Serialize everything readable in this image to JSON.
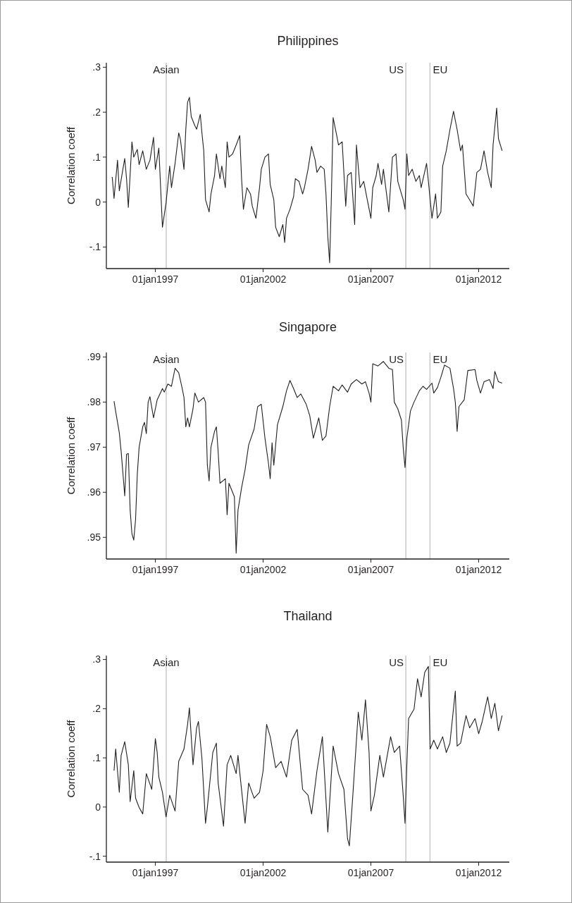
{
  "chart_data": [
    {
      "type": "line",
      "title": "Philippines",
      "ylabel": "Correlation coeff",
      "xlim": [
        "1994-09-24",
        "2013-06-03"
      ],
      "ylim": [
        -0.148,
        0.31
      ],
      "xticks": [
        {
          "value": "1997-01-01",
          "label": "01jan1997"
        },
        {
          "value": "2002-01-01",
          "label": "01jan2002"
        },
        {
          "value": "2007-01-01",
          "label": "01jan2007"
        },
        {
          "value": "2012-01-01",
          "label": "01jan2012"
        }
      ],
      "yticks": [
        {
          "value": -0.1,
          "label": "-.1"
        },
        0,
        {
          "value": 0.1,
          "label": ".1"
        },
        {
          "value": 0.2,
          "label": ".2"
        },
        {
          "value": 0.3,
          "label": ".3"
        }
      ],
      "ref_lines": [
        {
          "axis": "x",
          "value": "1997-07-04",
          "label": "Asian",
          "color": "#c8c8c8"
        },
        {
          "axis": "x",
          "value": "2008-08-15",
          "label": "US",
          "color": "#c8c8c8"
        },
        {
          "axis": "x",
          "value": "2009-09-28",
          "label": "EU",
          "color": "#c8c8c8"
        }
      ],
      "x": [
        "1995-01",
        "1995-02",
        "1995-04",
        "1995-05",
        "1995-07",
        "1995-08",
        "1995-09",
        "1995-10",
        "1995-12",
        "1996-01",
        "1996-03",
        "1996-04",
        "1996-06",
        "1996-08",
        "1996-10",
        "1996-12",
        "1997-01",
        "1997-03",
        "1997-04",
        "1997-05",
        "1997-07",
        "1997-09",
        "1997-10",
        "1997-12",
        "1998-02",
        "1998-03",
        "1998-05",
        "1998-06",
        "1998-07",
        "1998-08",
        "1998-09",
        "1998-11",
        "1998-12",
        "1999-02",
        "1999-03",
        "1999-04",
        "1999-05",
        "1999-07",
        "1999-08",
        "1999-10",
        "1999-11",
        "2000-01",
        "2000-02",
        "2000-04",
        "2000-05",
        "2000-06",
        "2000-08",
        "2000-10",
        "2000-12",
        "2001-01",
        "2001-02",
        "2001-04",
        "2001-06",
        "2001-07",
        "2001-09",
        "2001-11",
        "2001-12",
        "2002-02",
        "2002-04",
        "2002-05",
        "2002-07",
        "2002-08",
        "2002-10",
        "2002-12",
        "2003-01",
        "2003-02",
        "2003-04",
        "2003-06",
        "2003-07",
        "2003-09",
        "2003-11",
        "2003-12",
        "2004-02",
        "2004-04",
        "2004-06",
        "2004-07",
        "2004-09",
        "2004-11",
        "2004-12",
        "2005-01",
        "2005-02",
        "2005-03",
        "2005-04",
        "2005-06",
        "2005-07",
        "2005-09",
        "2005-11",
        "2005-12",
        "2006-02",
        "2006-04",
        "2006-05",
        "2006-07",
        "2006-09",
        "2006-11",
        "2007-01",
        "2007-02",
        "2007-04",
        "2007-05",
        "2007-07",
        "2007-08",
        "2007-11",
        "2008-01",
        "2008-03",
        "2008-04",
        "2008-07",
        "2008-08",
        "2008-09",
        "2008-10",
        "2008-12",
        "2009-02",
        "2009-04",
        "2009-05",
        "2009-08",
        "2009-09",
        "2009-11",
        "2010-01",
        "2010-02",
        "2010-04",
        "2010-05",
        "2010-07",
        "2010-09",
        "2010-11",
        "2011-01",
        "2011-03",
        "2011-04",
        "2011-06",
        "2011-08",
        "2011-10",
        "2011-12",
        "2012-02",
        "2012-04",
        "2012-06",
        "2012-08",
        "2012-09",
        "2012-11",
        "2012-12",
        "2013-02"
      ],
      "series": [
        {
          "color": "#231f20",
          "values": [
            0.056,
            0.008,
            0.093,
            0.025,
            0.073,
            0.097,
            0.052,
            -0.012,
            0.134,
            0.1,
            0.117,
            0.083,
            0.114,
            0.073,
            0.093,
            0.144,
            0.073,
            0.12,
            0.03,
            -0.056,
            -0.002,
            0.08,
            0.032,
            0.086,
            0.154,
            0.14,
            0.073,
            0.162,
            0.222,
            0.233,
            0.19,
            0.17,
            0.162,
            0.195,
            0.154,
            0.114,
            0.005,
            -0.022,
            0.018,
            0.059,
            0.107,
            0.052,
            0.08,
            0.032,
            0.134,
            0.1,
            0.107,
            0.127,
            0.148,
            0.052,
            -0.016,
            0.032,
            0.018,
            -0.009,
            -0.036,
            0.032,
            0.073,
            0.1,
            0.107,
            0.039,
            0.005,
            -0.056,
            -0.077,
            -0.05,
            -0.09,
            -0.036,
            -0.016,
            0.012,
            0.052,
            0.046,
            0.018,
            0.032,
            0.073,
            0.124,
            0.093,
            0.066,
            0.08,
            0.073,
            0.018,
            -0.077,
            -0.135,
            0.005,
            0.188,
            0.148,
            0.127,
            0.134,
            -0.009,
            0.059,
            0.066,
            -0.05,
            0.127,
            0.032,
            0.046,
            0.005,
            -0.036,
            0.032,
            0.059,
            0.086,
            0.039,
            0.073,
            -0.022,
            0.1,
            0.107,
            0.046,
            0.005,
            -0.016,
            0.107,
            0.059,
            0.073,
            0.046,
            0.059,
            0.032,
            0.086,
            0.046,
            -0.036,
            0.018,
            -0.036,
            -0.022,
            0.08,
            0.114,
            0.161,
            0.202,
            0.161,
            0.114,
            0.127,
            0.018,
            0.005,
            -0.009,
            0.066,
            0.073,
            0.114,
            0.066,
            0.032,
            0.127,
            0.209,
            0.141,
            0.114
          ]
        }
      ]
    },
    {
      "type": "line",
      "title": "Singapore",
      "ylabel": "Correlation coeff",
      "xlim": [
        "1994-09-24",
        "2013-06-03"
      ],
      "ylim": [
        0.9452,
        0.991
      ],
      "xticks": [
        {
          "value": "1997-01-01",
          "label": "01jan1997"
        },
        {
          "value": "2002-01-01",
          "label": "01jan2002"
        },
        {
          "value": "2007-01-01",
          "label": "01jan2007"
        },
        {
          "value": "2012-01-01",
          "label": "01jan2012"
        }
      ],
      "yticks": [
        {
          "value": 0.95,
          "label": ".95"
        },
        {
          "value": 0.96,
          "label": ".96"
        },
        {
          "value": 0.97,
          "label": ".97"
        },
        {
          "value": 0.98,
          "label": ".98"
        },
        {
          "value": 0.99,
          "label": ".99"
        }
      ],
      "ref_lines": [
        {
          "axis": "x",
          "value": "1997-07-04",
          "label": "Asian",
          "color": "#c8c8c8"
        },
        {
          "axis": "x",
          "value": "2008-08-15",
          "label": "US",
          "color": "#c8c8c8"
        },
        {
          "axis": "x",
          "value": "2009-09-28",
          "label": "EU",
          "color": "#c8c8c8"
        }
      ],
      "x": [
        "1995-02",
        "1995-03",
        "1995-05",
        "1995-06",
        "1995-07",
        "1995-08",
        "1995-09",
        "1995-10",
        "1995-11",
        "1995-12",
        "1996-01",
        "1996-02",
        "1996-03",
        "1996-04",
        "1996-06",
        "1996-07",
        "1996-08",
        "1996-09",
        "1996-10",
        "1996-12",
        "1997-02",
        "1997-05",
        "1997-06",
        "1997-08",
        "1997-10",
        "1997-12",
        "1998-02",
        "1998-04",
        "1998-05",
        "1998-06",
        "1998-07",
        "1998-08",
        "1998-10",
        "1998-11",
        "1999-01",
        "1999-04",
        "1999-05",
        "1999-06",
        "1999-07",
        "1999-08",
        "1999-10",
        "1999-11",
        "1999-12",
        "2000-01",
        "2000-04",
        "2000-05",
        "2000-06",
        "2000-09",
        "2000-10",
        "2000-11",
        "2001-01",
        "2001-03",
        "2001-05",
        "2001-08",
        "2001-10",
        "2001-12",
        "2002-02",
        "2002-04",
        "2002-05",
        "2002-06",
        "2002-07",
        "2002-09",
        "2002-12",
        "2003-02",
        "2003-04",
        "2003-06",
        "2003-08",
        "2003-10",
        "2004-01",
        "2004-03",
        "2004-05",
        "2004-08",
        "2004-10",
        "2004-12",
        "2005-02",
        "2005-04",
        "2005-07",
        "2005-09",
        "2005-12",
        "2006-02",
        "2006-05",
        "2006-08",
        "2006-10",
        "2006-12",
        "2007-01",
        "2007-02",
        "2007-05",
        "2007-08",
        "2007-11",
        "2008-01",
        "2008-02",
        "2008-04",
        "2008-06",
        "2008-07",
        "2008-08",
        "2008-09",
        "2008-11",
        "2009-01",
        "2009-04",
        "2009-06",
        "2009-08",
        "2009-11",
        "2009-12",
        "2010-02",
        "2010-04",
        "2010-06",
        "2010-09",
        "2010-11",
        "2010-12",
        "2011-01",
        "2011-02",
        "2011-05",
        "2011-07",
        "2011-11",
        "2011-12",
        "2012-02",
        "2012-04",
        "2012-07",
        "2012-09",
        "2012-10",
        "2012-12",
        "2013-02"
      ],
      "series": [
        {
          "color": "#231f20",
          "values": [
            0.9802,
            0.9779,
            0.9732,
            0.9691,
            0.9643,
            0.9592,
            0.9684,
            0.9686,
            0.956,
            0.9508,
            0.9494,
            0.954,
            0.964,
            0.97,
            0.9745,
            0.9755,
            0.973,
            0.98,
            0.9812,
            0.9765,
            0.9805,
            0.983,
            0.9822,
            0.984,
            0.9835,
            0.9875,
            0.9865,
            0.983,
            0.981,
            0.9745,
            0.9765,
            0.9745,
            0.9785,
            0.982,
            0.98,
            0.981,
            0.98,
            0.966,
            0.9625,
            0.97,
            0.9735,
            0.9745,
            0.969,
            0.962,
            0.963,
            0.955,
            0.962,
            0.959,
            0.9465,
            0.956,
            0.961,
            0.965,
            0.9705,
            0.974,
            0.979,
            0.9795,
            0.972,
            0.9665,
            0.963,
            0.971,
            0.966,
            0.975,
            0.979,
            0.9825,
            0.9848,
            0.983,
            0.981,
            0.9818,
            0.9795,
            0.977,
            0.972,
            0.9765,
            0.9715,
            0.9725,
            0.979,
            0.9835,
            0.9825,
            0.9838,
            0.9822,
            0.984,
            0.985,
            0.984,
            0.9845,
            0.982,
            0.98,
            0.9885,
            0.988,
            0.989,
            0.9875,
            0.9872,
            0.98,
            0.9785,
            0.976,
            0.97,
            0.9655,
            0.972,
            0.978,
            0.98,
            0.9825,
            0.9835,
            0.9828,
            0.9842,
            0.982,
            0.9832,
            0.9855,
            0.9882,
            0.9875,
            0.983,
            0.98,
            0.9735,
            0.979,
            0.9805,
            0.987,
            0.9872,
            0.9848,
            0.982,
            0.9845,
            0.985,
            0.983,
            0.9868,
            0.9845,
            0.9842
          ]
        }
      ]
    },
    {
      "type": "line",
      "title": "Thailand",
      "ylabel": "Correlation coeff",
      "xlim": [
        "1994-09-24",
        "2013-06-03"
      ],
      "ylim": [
        -0.112,
        0.308
      ],
      "xticks": [
        {
          "value": "1997-01-01",
          "label": "01jan1997"
        },
        {
          "value": "2002-01-01",
          "label": "01jan2002"
        },
        {
          "value": "2007-01-01",
          "label": "01jan2007"
        },
        {
          "value": "2012-01-01",
          "label": "01jan2012"
        }
      ],
      "yticks": [
        {
          "value": -0.1,
          "label": "-.1"
        },
        0,
        {
          "value": 0.1,
          "label": ".1"
        },
        {
          "value": 0.2,
          "label": ".2"
        },
        {
          "value": 0.3,
          "label": ".3"
        }
      ],
      "ref_lines": [
        {
          "axis": "x",
          "value": "1997-07-04",
          "label": "Asian",
          "color": "#c8c8c8"
        },
        {
          "axis": "x",
          "value": "2008-08-15",
          "label": "US",
          "color": "#c8c8c8"
        },
        {
          "axis": "x",
          "value": "2009-09-28",
          "label": "EU",
          "color": "#c8c8c8"
        }
      ],
      "x": [
        "1995-02",
        "1995-03",
        "1995-05",
        "1995-06",
        "1995-08",
        "1995-10",
        "1995-11",
        "1996-01",
        "1996-02",
        "1996-04",
        "1996-06",
        "1996-08",
        "1996-11",
        "1997-01",
        "1997-02",
        "1997-03",
        "1997-05",
        "1997-07",
        "1997-09",
        "1997-12",
        "1998-02",
        "1998-05",
        "1998-07",
        "1998-08",
        "1998-10",
        "1998-12",
        "1999-01",
        "1999-03",
        "1999-05",
        "1999-06",
        "1999-09",
        "1999-11",
        "1999-12",
        "2000-03",
        "2000-05",
        "2000-07",
        "2000-10",
        "2000-11",
        "2001-03",
        "2001-05",
        "2001-08",
        "2001-11",
        "2002-01",
        "2002-03",
        "2002-05",
        "2002-08",
        "2002-11",
        "2003-02",
        "2003-05",
        "2003-08",
        "2003-11",
        "2004-02",
        "2004-04",
        "2004-07",
        "2004-10",
        "2005-01",
        "2005-04",
        "2005-07",
        "2005-10",
        "2005-12",
        "2006-01",
        "2006-03",
        "2006-06",
        "2006-08",
        "2006-10",
        "2006-12",
        "2007-01",
        "2007-03",
        "2007-06",
        "2007-08",
        "2007-12",
        "2008-02",
        "2008-05",
        "2008-07",
        "2008-08",
        "2008-09",
        "2008-10",
        "2009-01",
        "2009-03",
        "2009-05",
        "2009-07",
        "2009-09",
        "2009-10",
        "2009-12",
        "2010-02",
        "2010-05",
        "2010-07",
        "2010-09",
        "2010-12",
        "2011-01",
        "2011-03",
        "2011-06",
        "2011-08",
        "2011-11",
        "2012-01",
        "2012-03",
        "2012-06",
        "2012-08",
        "2012-10",
        "2012-12",
        "2013-02"
      ],
      "series": [
        {
          "color": "#231f20",
          "values": [
            0.074,
            0.118,
            0.03,
            0.105,
            0.133,
            0.086,
            0.011,
            0.074,
            0.018,
            -0.001,
            -0.014,
            0.068,
            0.036,
            0.139,
            0.111,
            0.061,
            0.03,
            -0.02,
            0.024,
            -0.008,
            0.093,
            0.118,
            0.168,
            0.202,
            0.086,
            0.161,
            0.174,
            0.099,
            -0.033,
            -0.001,
            0.111,
            0.13,
            0.049,
            -0.039,
            0.086,
            0.105,
            0.068,
            0.105,
            -0.033,
            0.049,
            0.018,
            0.03,
            0.074,
            0.168,
            0.143,
            0.08,
            0.093,
            0.061,
            0.136,
            0.158,
            0.036,
            0.024,
            -0.014,
            0.074,
            0.143,
            -0.051,
            0.124,
            0.068,
            0.036,
            -0.064,
            -0.079,
            0.024,
            0.193,
            0.136,
            0.218,
            0.111,
            -0.008,
            0.024,
            0.105,
            0.061,
            0.143,
            0.111,
            0.124,
            0.024,
            -0.033,
            0.086,
            0.18,
            0.199,
            0.261,
            0.224,
            0.274,
            0.286,
            0.118,
            0.136,
            0.118,
            0.143,
            0.111,
            0.13,
            0.236,
            0.124,
            0.13,
            0.186,
            0.161,
            0.18,
            0.149,
            0.174,
            0.224,
            0.18,
            0.211,
            0.155,
            0.186
          ]
        }
      ]
    }
  ]
}
